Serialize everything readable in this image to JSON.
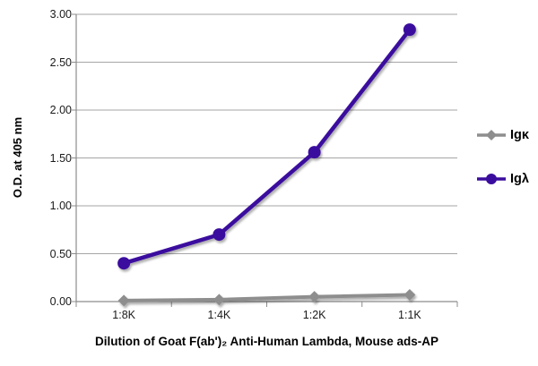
{
  "chart_data": {
    "type": "line",
    "xlabel": "Dilution of Goat F(ab')₂ Anti-Human Lambda, Mouse ads-AP",
    "ylabel": "O.D. at 405 nm",
    "categories": [
      "1:8K",
      "1:4K",
      "1:2K",
      "1:1K"
    ],
    "series": [
      {
        "name": "Igκ",
        "marker": "diamond",
        "color": "#8E8E8E",
        "values": [
          0.01,
          0.02,
          0.05,
          0.07
        ]
      },
      {
        "name": "Igλ",
        "marker": "circle",
        "color": "#3A0D9E",
        "values": [
          0.4,
          0.7,
          1.56,
          2.84
        ]
      }
    ],
    "ylim": [
      0,
      3.0
    ],
    "yticks": [
      "0.00",
      "0.50",
      "1.00",
      "1.50",
      "2.00",
      "2.50",
      "3.00"
    ],
    "grid": "horizontal",
    "legend_position": "right",
    "colors": {
      "grid": "#A6A6A6",
      "axis": "#8C8C8C",
      "tick_text": "#1A1A1A"
    }
  }
}
